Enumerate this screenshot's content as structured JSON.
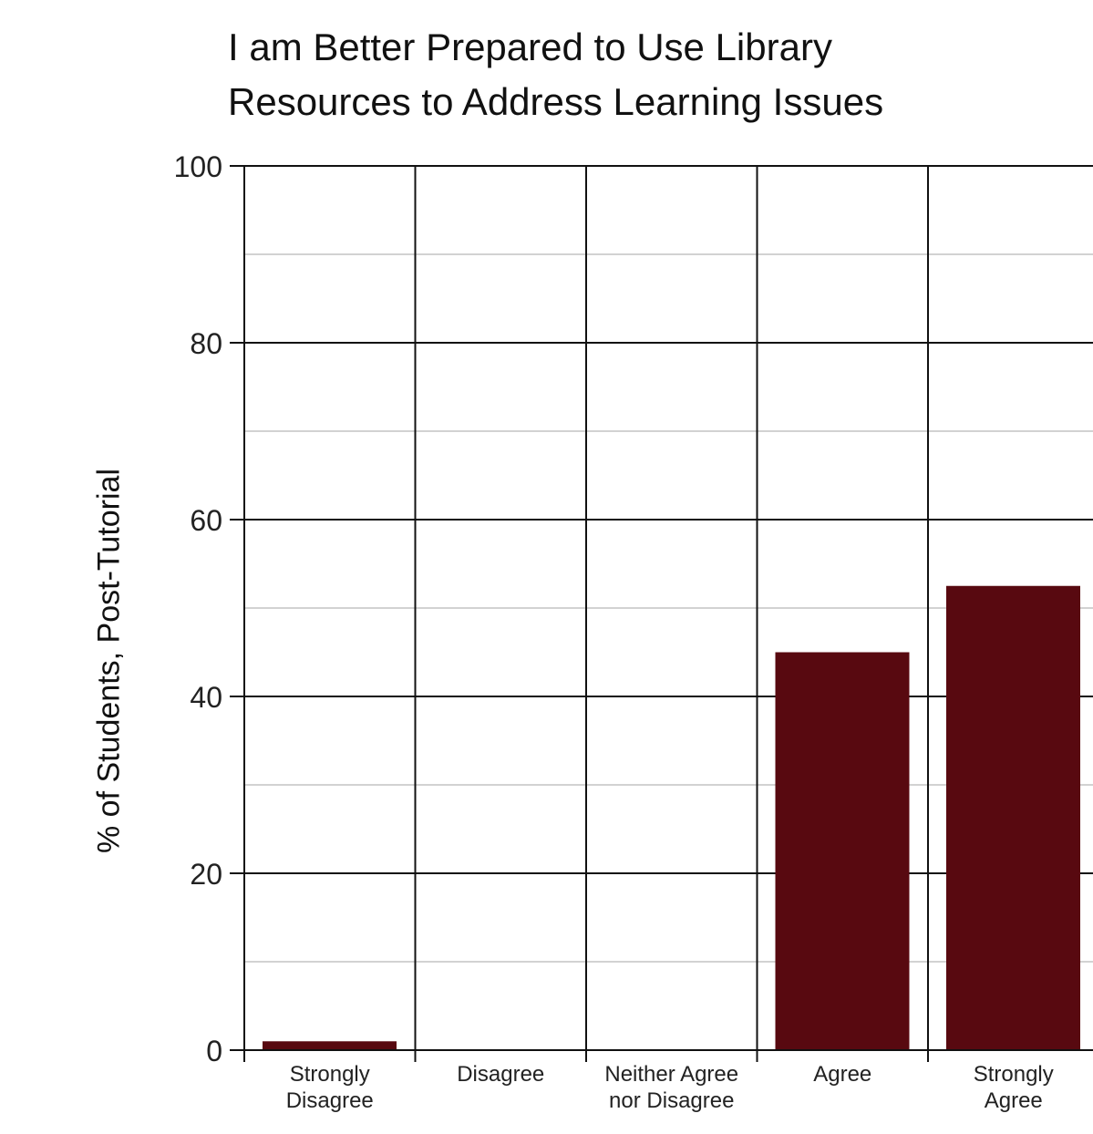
{
  "chart_data": {
    "type": "bar",
    "title_lines": [
      "I am Better Prepared to Use Library",
      "Resources to Address Learning Issues"
    ],
    "ylabel": "% of Students, Post-Tutorial",
    "xlabel": "",
    "categories": [
      [
        "Strongly",
        "Disagree"
      ],
      [
        "Disagree"
      ],
      [
        "Neither Agree",
        "nor Disagree"
      ],
      [
        "Agree"
      ],
      [
        "Strongly",
        "Agree"
      ]
    ],
    "values": [
      1,
      0,
      0,
      45,
      52.5
    ],
    "ylim": [
      0,
      100
    ],
    "yticks": [
      0,
      20,
      40,
      60,
      80,
      100
    ],
    "grid": true,
    "bar_color": "#580910"
  }
}
